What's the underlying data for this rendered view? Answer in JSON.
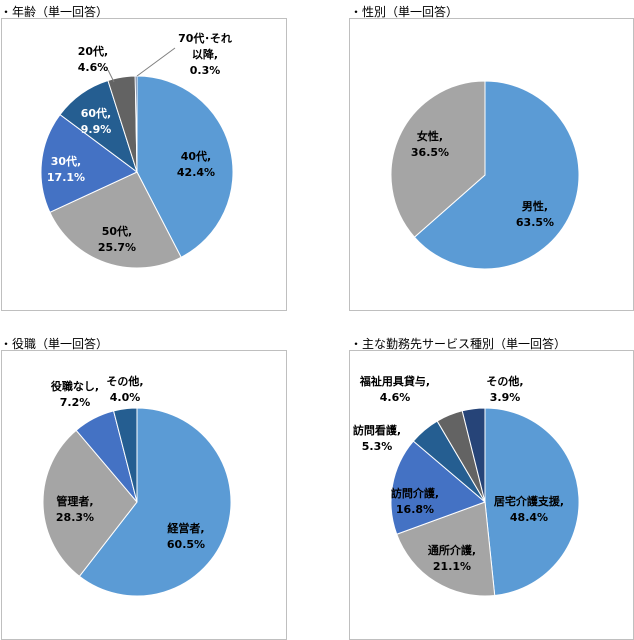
{
  "chart_data": [
    {
      "type": "pie",
      "title": "・年齢（単一回答）",
      "slices": [
        {
          "label": "40代,",
          "value_label": "42.4%",
          "value": 42.4,
          "color": "#5b9bd5",
          "text_color": "#000000"
        },
        {
          "label": "50代,",
          "value_label": "25.7%",
          "value": 25.7,
          "color": "#a5a5a5",
          "text_color": "#000000"
        },
        {
          "label": "30代,",
          "value_label": "17.1%",
          "value": 17.1,
          "color": "#4472c4",
          "text_color": "#ffffff"
        },
        {
          "label": "60代,",
          "value_label": "9.9%",
          "value": 9.9,
          "color": "#255e91",
          "text_color": "#ffffff"
        },
        {
          "label": "20代,",
          "value_label": "4.6%",
          "value": 4.6,
          "color": "#636363",
          "text_color": "#000000"
        },
        {
          "label": "70代･それ以降,",
          "value_label": "0.3%",
          "value": 0.3,
          "color": "#264478",
          "text_color": "#000000"
        }
      ]
    },
    {
      "type": "pie",
      "title": "・性別（単一回答）",
      "slices": [
        {
          "label": "男性,",
          "value_label": "63.5%",
          "value": 63.5,
          "color": "#5b9bd5",
          "text_color": "#000000"
        },
        {
          "label": "女性,",
          "value_label": "36.5%",
          "value": 36.5,
          "color": "#a5a5a5",
          "text_color": "#000000"
        }
      ]
    },
    {
      "type": "pie",
      "title": "・役職（単一回答）",
      "slices": [
        {
          "label": "経営者,",
          "value_label": "60.5%",
          "value": 60.5,
          "color": "#5b9bd5",
          "text_color": "#000000"
        },
        {
          "label": "管理者,",
          "value_label": "28.3%",
          "value": 28.3,
          "color": "#a5a5a5",
          "text_color": "#000000"
        },
        {
          "label": "役職なし,",
          "value_label": "7.2%",
          "value": 7.2,
          "color": "#4472c4",
          "text_color": "#000000"
        },
        {
          "label": "その他,",
          "value_label": "4.0%",
          "value": 4.0,
          "color": "#255e91",
          "text_color": "#000000"
        }
      ]
    },
    {
      "type": "pie",
      "title": "・主な勤務先サービス種別（単一回答）",
      "slices": [
        {
          "label": "居宅介護支援,",
          "value_label": "48.4%",
          "value": 48.4,
          "color": "#5b9bd5",
          "text_color": "#000000"
        },
        {
          "label": "通所介護,",
          "value_label": "21.1%",
          "value": 21.1,
          "color": "#a5a5a5",
          "text_color": "#000000"
        },
        {
          "label": "訪問介護,",
          "value_label": "16.8%",
          "value": 16.8,
          "color": "#4472c4",
          "text_color": "#000000"
        },
        {
          "label": "訪問看護,",
          "value_label": "5.3%",
          "value": 5.3,
          "color": "#255e91",
          "text_color": "#000000"
        },
        {
          "label": "福祉用具貸与,",
          "value_label": "4.6%",
          "value": 4.6,
          "color": "#636363",
          "text_color": "#000000"
        },
        {
          "label": "その他,",
          "value_label": "3.9%",
          "value": 3.9,
          "color": "#264478",
          "text_color": "#000000"
        }
      ]
    }
  ]
}
